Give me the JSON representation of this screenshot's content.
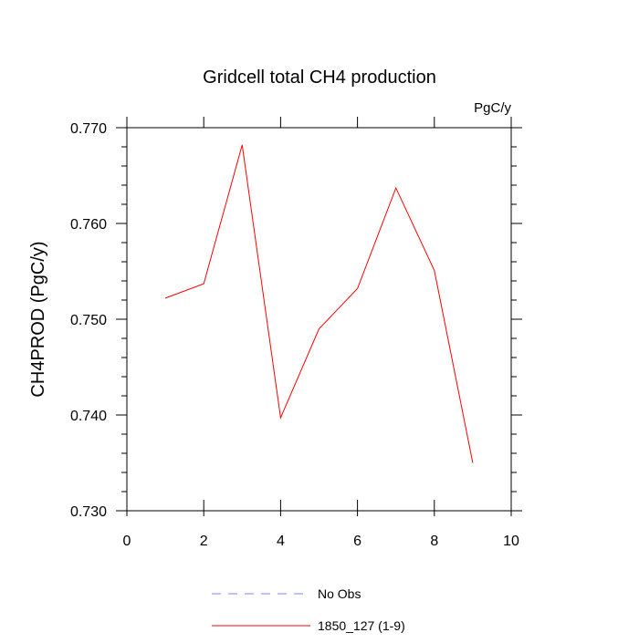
{
  "chart_data": {
    "type": "line",
    "title": "Gridcell total CH4 production",
    "units_label": "PgC/y",
    "ylabel": "CH4PROD  (PgC/y)",
    "xlabel": "",
    "xlim": [
      0,
      10
    ],
    "ylim": [
      0.73,
      0.77
    ],
    "x_ticks": [
      0,
      2,
      4,
      6,
      8,
      10
    ],
    "x_tick_labels": [
      "0",
      "2",
      "4",
      "6",
      "8",
      "10"
    ],
    "y_ticks": [
      0.73,
      0.74,
      0.75,
      0.76,
      0.77
    ],
    "y_tick_labels": [
      "0.730",
      "0.740",
      "0.750",
      "0.760",
      "0.770"
    ],
    "grid": false,
    "legend_position": "bottom",
    "series": [
      {
        "name": "1850_127 (1-9)",
        "color": "#ff0000",
        "style": "solid",
        "x": [
          1,
          2,
          3,
          4,
          5,
          6,
          7,
          8,
          9
        ],
        "values": [
          0.7522,
          0.7537,
          0.7682,
          0.7397,
          0.749,
          0.7532,
          0.7637,
          0.7551,
          0.735
        ]
      }
    ],
    "legend": [
      {
        "label": "No Obs",
        "color": "#8080ff",
        "style": "dashed"
      },
      {
        "label": "1850_127 (1-9)",
        "color": "#ff0000",
        "style": "solid"
      }
    ]
  }
}
